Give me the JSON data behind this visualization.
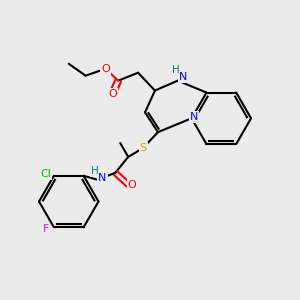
{
  "background_color": "#ebebeb",
  "bond_color": "#000000",
  "atom_colors": {
    "O": "#ff0000",
    "N": "#0000ff",
    "NH": "#008080",
    "S": "#ccaa00",
    "Cl": "#00bb00",
    "F": "#ff00ff",
    "C": "#000000"
  },
  "figsize": [
    3.0,
    3.0
  ],
  "dpi": 100
}
